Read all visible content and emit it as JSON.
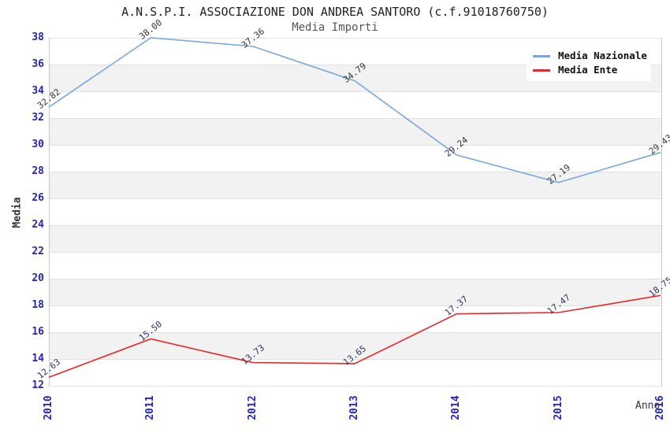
{
  "header": {
    "title": "A.N.S.P.I. ASSOCIAZIONE DON ANDREA SANTORO (c.f.91018760750)",
    "subtitle": "Media Importi"
  },
  "chart_data": {
    "type": "line",
    "title": "A.N.S.P.I. ASSOCIAZIONE DON ANDREA SANTORO (c.f.91018760750)",
    "subtitle": "Media Importi",
    "xlabel": "Anno",
    "ylabel": "Media",
    "x": [
      "2010",
      "2011",
      "2012",
      "2013",
      "2014",
      "2015",
      "2016"
    ],
    "series": [
      {
        "name": "Media Nazionale",
        "values": [
          32.82,
          38.0,
          37.36,
          34.79,
          29.24,
          27.19,
          29.43
        ],
        "color": "#78a8e0",
        "label_color": "#333333"
      },
      {
        "name": "Media Ente",
        "values": [
          12.63,
          15.5,
          13.73,
          13.65,
          17.37,
          17.47,
          18.75
        ],
        "color": "#ee2524",
        "label_color": "#333366"
      }
    ],
    "ylim": [
      12,
      38
    ],
    "ytick_step": 2,
    "grid": true,
    "legend_position": "top-right",
    "band_colors": [
      "#ffffff",
      "#f2f2f2"
    ],
    "gridline_color": "#e2e2e2",
    "axis_tick_color": "#2323cc",
    "value_label_decimals": 2
  }
}
